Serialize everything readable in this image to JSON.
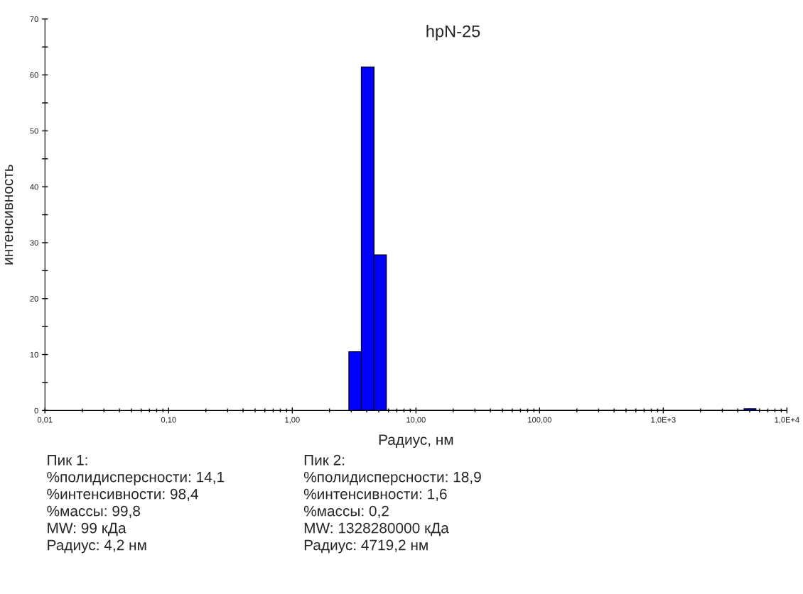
{
  "chart_data": {
    "type": "histogram",
    "title": "hpN-25",
    "xlabel": "Радиус, нм",
    "ylabel": "интенсивность",
    "bins": [
      2.87,
      3.62,
      4.58,
      5.76,
      4500,
      5610
    ],
    "values": [
      10.5,
      61.4,
      27.8,
      0,
      0.3
    ],
    "color": "#0000ff",
    "log": "x",
    "grid": false,
    "legend": false,
    "xlim": [
      0.01,
      10000
    ],
    "xticks": [
      {
        "value": 0.01,
        "label": "0,01"
      },
      {
        "value": 0.1,
        "label": "0,10"
      },
      {
        "value": 1,
        "label": "1,00"
      },
      {
        "value": 10,
        "label": "10,00"
      },
      {
        "value": 100,
        "label": "100,00"
      },
      {
        "value": 1000,
        "label": "1,0E+3"
      },
      {
        "value": 10000,
        "label": "1,0E+4"
      }
    ],
    "ylim": [
      0,
      70
    ],
    "yticks": [
      0,
      {
        "value": 5,
        "label": null
      },
      10,
      {
        "value": 15,
        "label": null
      },
      20,
      {
        "value": 25,
        "label": null
      },
      30,
      {
        "value": 35,
        "label": null
      },
      40,
      {
        "value": 45,
        "label": null
      },
      50,
      {
        "value": 55,
        "label": null
      },
      60,
      {
        "value": 65,
        "label": null
      },
      70
    ],
    "annotations": [
      "Пик 1:\n%полидисперсности: 14,1\n%интенсивности: 98,4\n%массы: 99,8\nMW: 99 кДа\nРадиус: 4,2 нм",
      "Пик 2:\n%полидисперсности: 18,9\n%интенсивности: 1,6\n%массы: 0,2\nMW: 1328280000 кДа\nРадиус: 4719,2 нм"
    ]
  }
}
